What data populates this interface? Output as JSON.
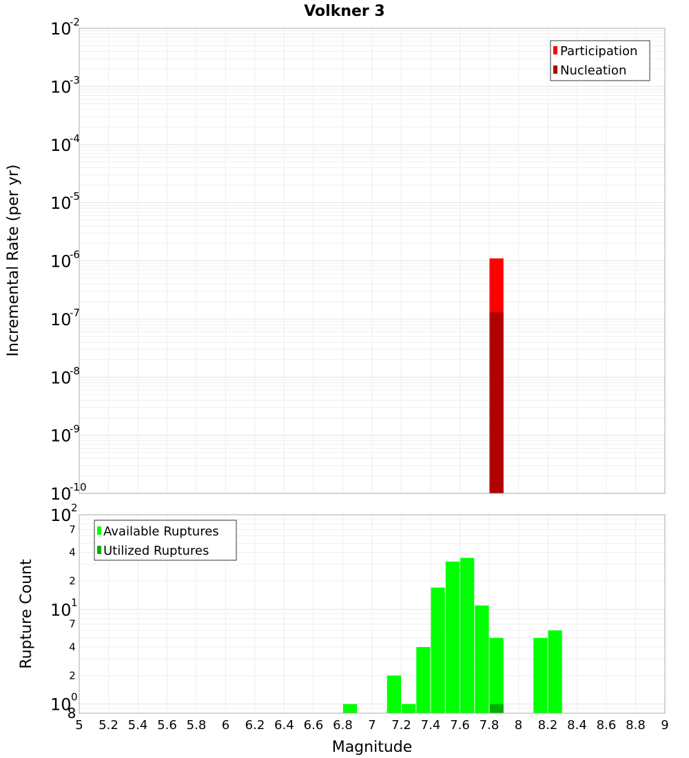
{
  "chart_data": [
    {
      "type": "bar",
      "title": "Volkner 3",
      "xlabel": "",
      "ylabel": "Incremental Rate (per yr)",
      "yscale": "log",
      "xlim": [
        5,
        9
      ],
      "ylim": [
        1e-10,
        0.01
      ],
      "y_tick_exponents": [
        -2,
        -3,
        -4,
        -5,
        -6,
        -7,
        -8,
        -9,
        -10
      ],
      "bar_width": 0.1,
      "grid": true,
      "legend_position": "top-right",
      "colors": {
        "participation": "#ff0000",
        "nucleation": "#b00000"
      },
      "series": [
        {
          "name": "Participation",
          "x": [
            7.85
          ],
          "values": [
            1.1e-06
          ]
        },
        {
          "name": "Nucleation",
          "x": [
            7.85
          ],
          "values": [
            1.3e-07
          ]
        }
      ]
    },
    {
      "type": "bar",
      "title": "",
      "xlabel": "Magnitude",
      "ylabel": "Rupture Count",
      "yscale": "log",
      "xlim": [
        5,
        9
      ],
      "ylim": [
        0.8,
        100
      ],
      "x_ticks": [
        "5",
        "5.2",
        "5.4",
        "5.6",
        "5.8",
        "6",
        "6.2",
        "6.4",
        "6.6",
        "6.8",
        "7",
        "7.2",
        "7.4",
        "7.6",
        "7.8",
        "8",
        "8.2",
        "8.4",
        "8.6",
        "8.8",
        "9"
      ],
      "y_major_exponents": [
        2,
        1,
        0
      ],
      "y_minor_labels": [
        "7",
        "4",
        "2",
        "7",
        "4",
        "2",
        "8"
      ],
      "bar_width": 0.1,
      "grid": true,
      "legend_position": "top-left",
      "colors": {
        "available": "#00ff00",
        "utilized": "#00b000"
      },
      "series": [
        {
          "name": "Available Ruptures",
          "x": [
            6.85,
            7.15,
            7.25,
            7.35,
            7.45,
            7.55,
            7.65,
            7.75,
            7.85,
            8.15,
            8.25
          ],
          "values": [
            1,
            2,
            1,
            4,
            17,
            32,
            35,
            11,
            5,
            5,
            6
          ]
        },
        {
          "name": "Utilized Ruptures",
          "x": [
            7.85
          ],
          "values": [
            1
          ]
        }
      ]
    }
  ]
}
